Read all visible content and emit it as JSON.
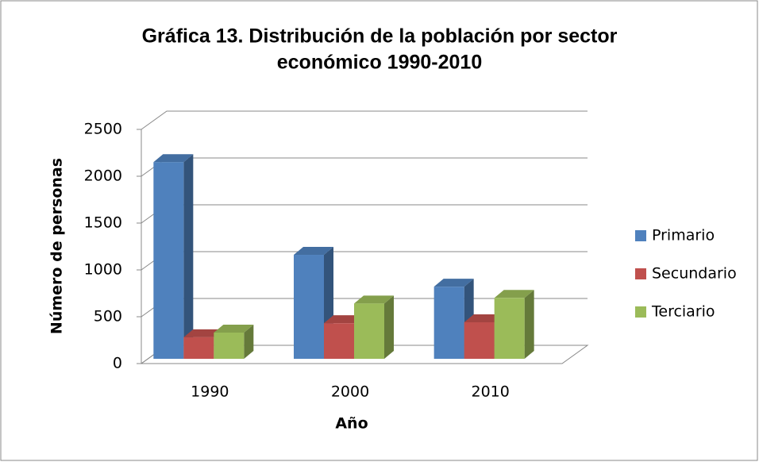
{
  "chart_data": {
    "type": "bar3d",
    "title": [
      "Gráfica 13. Distribución de la población por sector",
      "económico 1990-2010"
    ],
    "x_label": "Año",
    "y_label": "Número de personas",
    "categories": [
      "1990",
      "2000",
      "2010"
    ],
    "series": [
      {
        "name": "Primario",
        "color": "#4f81bd",
        "values": [
          2100,
          1110,
          770
        ]
      },
      {
        "name": "Secundario",
        "color": "#c0504d",
        "values": [
          230,
          380,
          390
        ]
      },
      {
        "name": "Terciario",
        "color": "#9bbb59",
        "values": [
          280,
          590,
          650
        ]
      }
    ],
    "ylim": [
      0,
      2500
    ],
    "yticks": [
      0,
      500,
      1000,
      1500,
      2000,
      2500
    ],
    "grid": true,
    "legend": "right"
  }
}
